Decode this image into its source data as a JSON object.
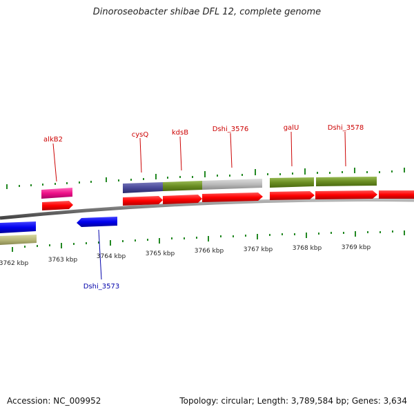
{
  "title": "Dinoroseobacter shibae DFL 12, complete genome",
  "footer": {
    "accession": "Accession: NC_009952",
    "stats": "Topology: circular; Length: 3,789,584 bp; Genes: 3,634"
  },
  "scale_labels": [
    "3762 kbp",
    "3763 kbp",
    "3764 kbp",
    "3765 kbp",
    "3766 kbp",
    "3767 kbp",
    "3768 kbp",
    "3769 kbp"
  ],
  "gene_labels": {
    "alkB2": "alkB2",
    "cysQ": "cysQ",
    "kdsB": "kdsB",
    "dshi_3576": "Dshi_3576",
    "galU": "galU",
    "dshi_3578": "Dshi_3578",
    "dshi_3573": "Dshi_3573"
  },
  "colors": {
    "forward_cds": "#ff0000",
    "reverse_cds": "#0000ee",
    "forward_label": "#cc0000",
    "reverse_label": "#0000aa",
    "pink_feature": "#ee1188",
    "olive_feature": "#6b8e23",
    "slate_feature": "#4a4a9a",
    "grey_feature": "#b8b8b8",
    "khaki_feature": "#b8b87a",
    "tick_green": "#228822",
    "backbone": "#808080"
  }
}
